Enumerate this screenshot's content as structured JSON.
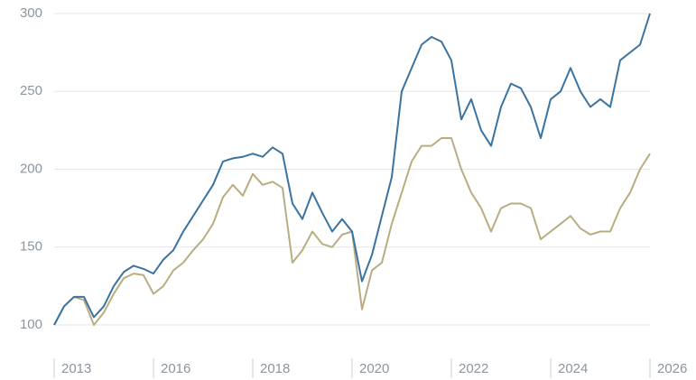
{
  "chart_data": {
    "type": "line",
    "x_tick_labels": [
      "2013",
      "2016",
      "2018",
      "2020",
      "2022",
      "2024",
      "2026"
    ],
    "series": [
      {
        "color": "#3a73a0",
        "values": [
          100,
          112,
          118,
          118,
          105,
          112,
          125,
          134,
          138,
          136,
          133,
          142,
          148,
          160,
          170,
          180,
          190,
          205,
          207,
          208,
          210,
          208,
          214,
          210,
          178,
          168,
          185,
          172,
          160,
          168,
          160,
          128,
          145,
          170,
          195,
          250,
          265,
          280,
          285,
          282,
          270,
          232,
          245,
          225,
          215,
          240,
          255,
          252,
          240,
          220,
          245,
          250,
          265,
          250,
          240,
          245,
          240,
          270,
          275,
          280,
          300
        ]
      },
      {
        "color": "#b8ad80",
        "values": [
          100,
          112,
          118,
          116,
          100,
          108,
          120,
          130,
          133,
          132,
          120,
          125,
          135,
          140,
          148,
          155,
          165,
          182,
          190,
          183,
          197,
          190,
          192,
          188,
          140,
          148,
          160,
          152,
          150,
          158,
          160,
          110,
          135,
          140,
          165,
          185,
          205,
          215,
          215,
          220,
          220,
          200,
          185,
          175,
          160,
          175,
          178,
          178,
          175,
          155,
          160,
          165,
          170,
          162,
          158,
          160,
          160,
          175,
          185,
          200,
          210
        ]
      }
    ],
    "ylim": [
      80,
      302
    ],
    "yticks": [
      100,
      150,
      200,
      250,
      300
    ],
    "grid": true
  }
}
